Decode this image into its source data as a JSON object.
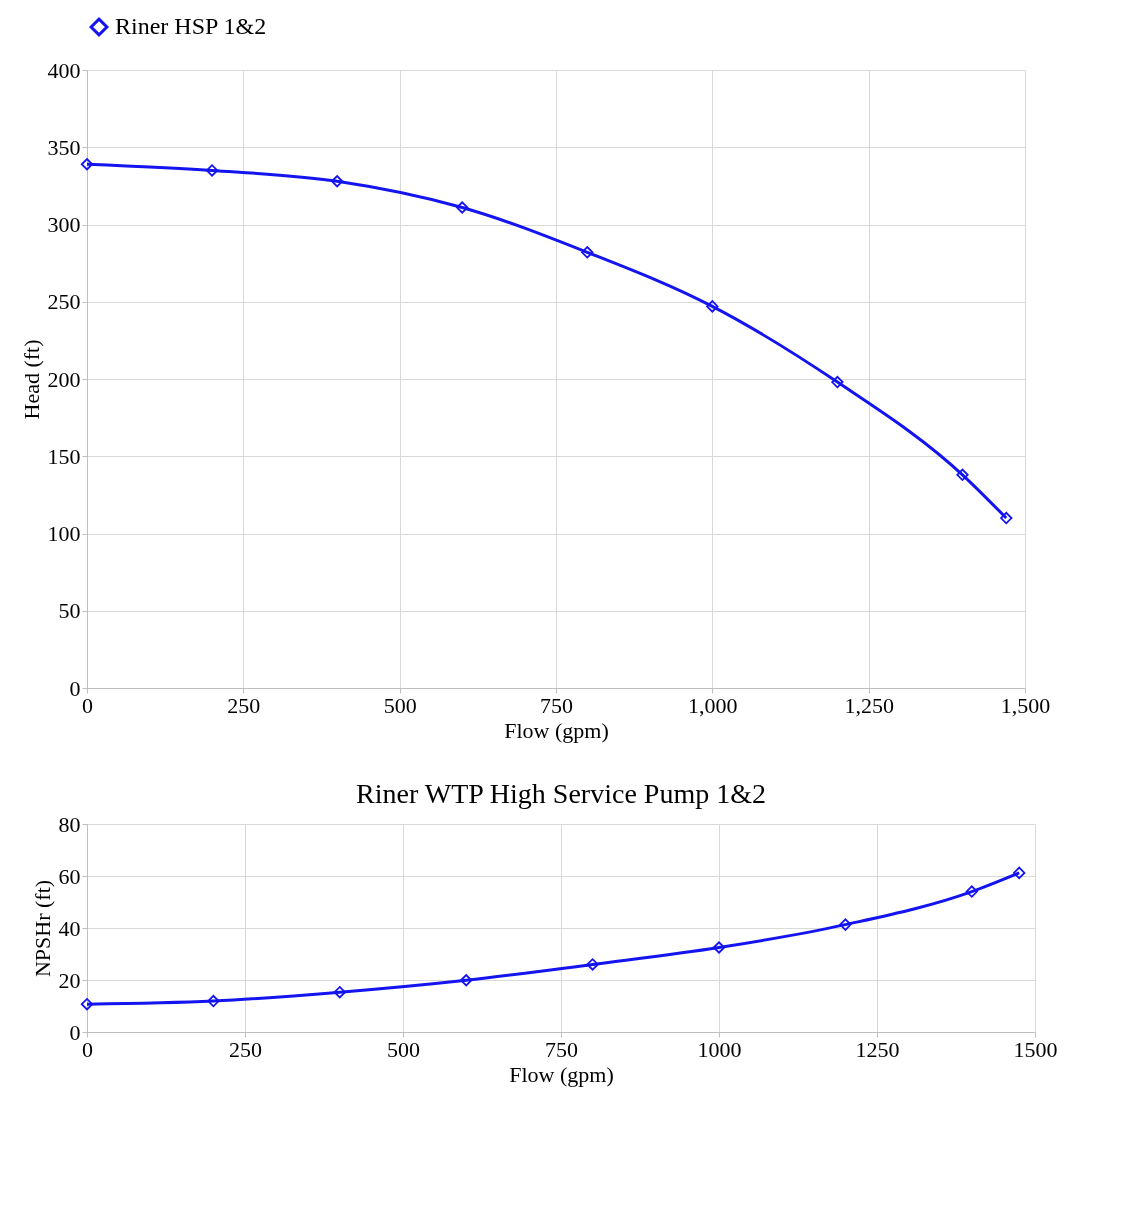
{
  "chart_data": [
    {
      "type": "line",
      "xlabel": "Flow (gpm)",
      "ylabel": "Head (ft)",
      "marker": "diamond",
      "line_style": "solid",
      "grid": true,
      "legend": "top",
      "xlim": [
        0,
        1500
      ],
      "ylim": [
        0,
        400
      ],
      "xticks": [
        0,
        250,
        500,
        750,
        {
          "value": 1000,
          "label": "1,000"
        },
        {
          "value": 1250,
          "label": "1,250"
        },
        {
          "value": 1500,
          "label": "1,500"
        }
      ],
      "yticks": [
        0,
        50,
        100,
        150,
        200,
        250,
        300,
        350,
        400
      ],
      "series": [
        {
          "name": "Riner HSP 1&2",
          "color": "#1414f0",
          "x": [
            0,
            200,
            400,
            600,
            800,
            1000,
            1200,
            1400,
            1470
          ],
          "values": [
            339,
            335,
            328,
            311,
            282,
            247,
            198,
            138,
            110
          ]
        }
      ]
    },
    {
      "type": "line",
      "title": "Riner WTP High Service Pump 1&2",
      "xlabel": "Flow (gpm)",
      "ylabel": "NPSHr (ft)",
      "marker": "diamond",
      "line_style": "solid",
      "grid": true,
      "legend": false,
      "xlim": [
        0,
        1500
      ],
      "ylim": [
        0,
        80
      ],
      "xticks": [
        0,
        250,
        500,
        750,
        {
          "value": 1000,
          "label": "1000"
        },
        {
          "value": 1250,
          "label": "1250"
        },
        {
          "value": 1500,
          "label": "1500"
        }
      ],
      "yticks": [
        0,
        20,
        40,
        60,
        80
      ],
      "series": [
        {
          "color": "#1414f0",
          "x": [
            0,
            200,
            400,
            600,
            800,
            1000,
            1200,
            1400,
            1475
          ],
          "values": [
            10.7,
            11.9,
            15.3,
            19.9,
            26,
            32.5,
            41.3,
            54,
            61.2
          ]
        }
      ]
    }
  ]
}
